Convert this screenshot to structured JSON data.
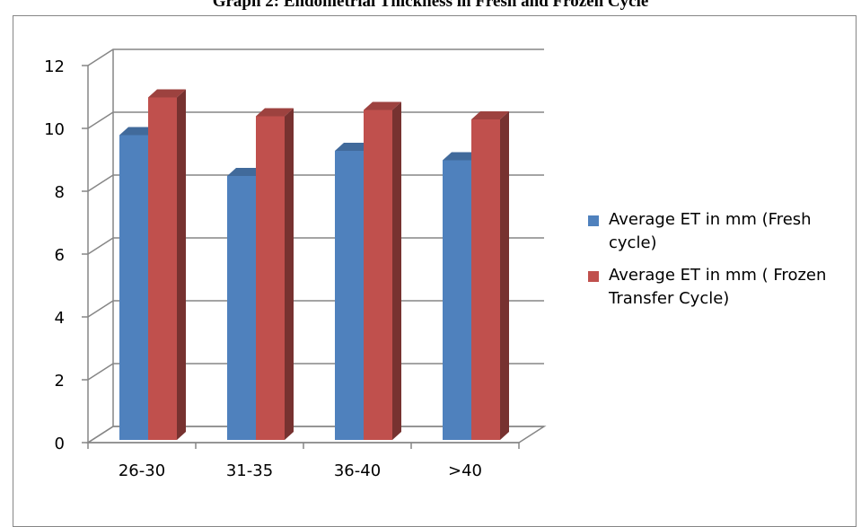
{
  "chart_data": {
    "type": "bar",
    "title": "Graph 2: Endometrial Thickness in Fresh and Frozen Cycle",
    "categories": [
      "26-30",
      "31-35",
      "36-40",
      ">40"
    ],
    "series": [
      {
        "name": "Average ET in mm (Fresh cycle)",
        "values": [
          9.7,
          8.4,
          9.2,
          8.9
        ],
        "color": "#4f81bd"
      },
      {
        "name": "Average ET in mm ( Frozen Transfer Cycle)",
        "values": [
          10.9,
          10.3,
          10.5,
          10.2
        ],
        "color": "#c0504d"
      }
    ],
    "ylim": [
      0,
      12
    ],
    "yticks": [
      0,
      2,
      4,
      6,
      8,
      10,
      12
    ],
    "xlabel": "",
    "ylabel": "",
    "grid": true,
    "legend_position": "right",
    "style": "3d-clustered-column"
  }
}
